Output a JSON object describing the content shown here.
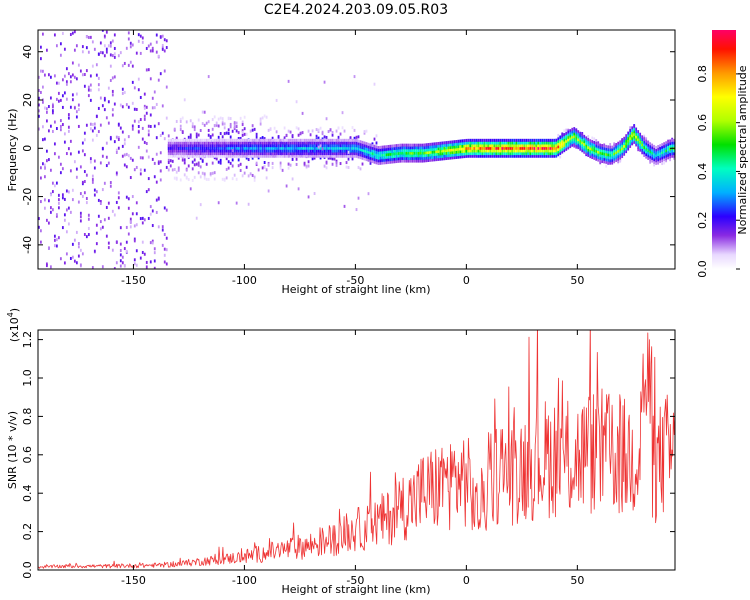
{
  "title": "C2E4.2024.203.09.05.R03",
  "chart_data": [
    {
      "type": "heatmap",
      "xlabel": "Height of straight line (km)",
      "ylabel": "Frequency (Hz)",
      "xlim": [
        -193,
        94
      ],
      "ylim": [
        -50,
        49
      ],
      "xticks": [
        -150,
        -100,
        -50,
        0,
        50
      ],
      "yticks": [
        -40,
        -20,
        0,
        20,
        40
      ],
      "colorbar": {
        "label": "Normalized spectral amplitude",
        "range": [
          0.0,
          0.98
        ],
        "ticks": [
          0.0,
          0.2,
          0.4,
          0.6,
          0.8
        ]
      },
      "ridge": {
        "description_points_x": [
          -193,
          -135,
          -100,
          -50,
          -40,
          -30,
          -20,
          -10,
          0,
          10,
          20,
          30,
          40,
          48,
          55,
          60,
          65,
          70,
          75,
          80,
          85,
          92
        ],
        "frequency_hz": [
          0,
          0,
          0,
          0,
          -3,
          -2,
          -2,
          -1,
          0,
          0,
          0,
          0,
          0,
          5,
          0,
          -2,
          -3,
          0,
          6,
          0,
          -3,
          0
        ],
        "amplitude": [
          0.05,
          0.2,
          0.3,
          0.35,
          0.45,
          0.5,
          0.55,
          0.65,
          0.8,
          0.85,
          0.9,
          0.9,
          0.9,
          0.6,
          0.6,
          0.55,
          0.5,
          0.6,
          0.7,
          0.5,
          0.35,
          0.5
        ]
      }
    },
    {
      "type": "line",
      "xlabel": "Height of straight line (km)",
      "ylabel": "SNR (10 * v/v)",
      "yscale_label": "(x10",
      "yscale_exp": "4",
      "yscale_close": ")",
      "xlim": [
        -193,
        94
      ],
      "ylim": [
        0,
        12500
      ],
      "xticks": [
        -150,
        -100,
        -50,
        0,
        50
      ],
      "yticks": [
        0.0,
        0.2,
        0.4,
        0.6,
        0.8,
        1.0,
        1.2
      ],
      "series": [
        {
          "color": "#ee3333",
          "x": [
            -193,
            -180,
            -160,
            -140,
            -130,
            -120,
            -110,
            -100,
            -90,
            -80,
            -70,
            -60,
            -50,
            -45,
            -40,
            -35,
            -30,
            -25,
            -20,
            -15,
            -10,
            -5,
            0,
            5,
            10,
            15,
            20,
            25,
            30,
            35,
            40,
            45,
            50,
            55,
            60,
            65,
            70,
            75,
            78,
            80,
            82,
            85,
            88,
            90,
            94
          ],
          "y": [
            150,
            200,
            200,
            250,
            300,
            450,
            550,
            700,
            900,
            1100,
            1300,
            1600,
            2100,
            2200,
            2500,
            2700,
            3300,
            3500,
            4000,
            4200,
            4500,
            4700,
            4800,
            3000,
            4200,
            5300,
            5000,
            5400,
            5600,
            5800,
            6000,
            5700,
            5900,
            6100,
            6200,
            6000,
            5800,
            5900,
            6500,
            7200,
            6000,
            5200,
            5800,
            6000,
            6100
          ],
          "peak": {
            "x": 81,
            "y": 12400
          }
        }
      ]
    }
  ]
}
